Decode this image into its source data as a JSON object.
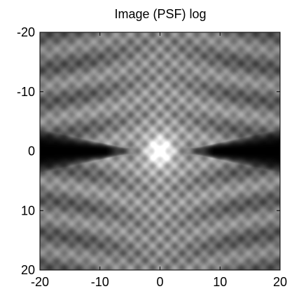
{
  "chart_data": {
    "type": "heatmap",
    "title": "Image (PSF) log",
    "xlabel": "",
    "ylabel": "",
    "xlim": [
      -20,
      20
    ],
    "ylim": [
      -20,
      20
    ],
    "y_direction": "reversed",
    "xticks": [
      -20,
      -10,
      0,
      10,
      20
    ],
    "yticks": [
      -20,
      -10,
      0,
      10,
      20
    ],
    "xtick_labels": [
      "-20",
      "-10",
      "0",
      "10",
      "20"
    ],
    "ytick_labels": [
      "-20",
      "-10",
      "0",
      "10",
      "20"
    ],
    "colormap": "gray",
    "grid": false,
    "description_of_values": "log-scaled point spread function intensity, brightest at center (0,0)"
  }
}
